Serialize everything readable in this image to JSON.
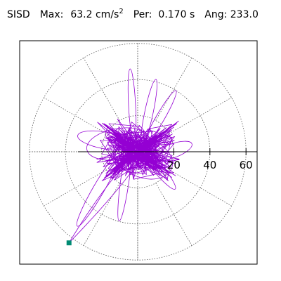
{
  "header": {
    "station": "SISD",
    "max_label": "Max:",
    "max_value": "63.2",
    "max_unit": "cm/s",
    "max_unit_exp": "2",
    "per_label": "Per:",
    "per_value": "0.170 s",
    "ang_label": "Ang:",
    "ang_value": "233.0"
  },
  "chart_data": {
    "type": "line",
    "coordinate_system": "polar",
    "title": "SISD   Max:   63.2 cm/s2  Per:  0.170 s   Ang: 233.0",
    "radial_ticks": [
      20,
      40,
      60
    ],
    "radial_tick_labels": [
      "20",
      "40",
      "60"
    ],
    "rlim": [
      0,
      70
    ],
    "grid": true,
    "grid_rings": [
      20,
      40,
      60
    ],
    "grid_spokes_deg": [
      0,
      30,
      60,
      90,
      120,
      150,
      180,
      210,
      240,
      270,
      300,
      330
    ],
    "trace_color": "#9400d3",
    "peak": {
      "r": 63.2,
      "angle_deg": 233.0,
      "color": "#008b73"
    },
    "series": [
      {
        "values": []
      }
    ]
  },
  "colors": {
    "trace": "#9400d3",
    "peak_marker": "#008b73",
    "grid": "#555555"
  }
}
